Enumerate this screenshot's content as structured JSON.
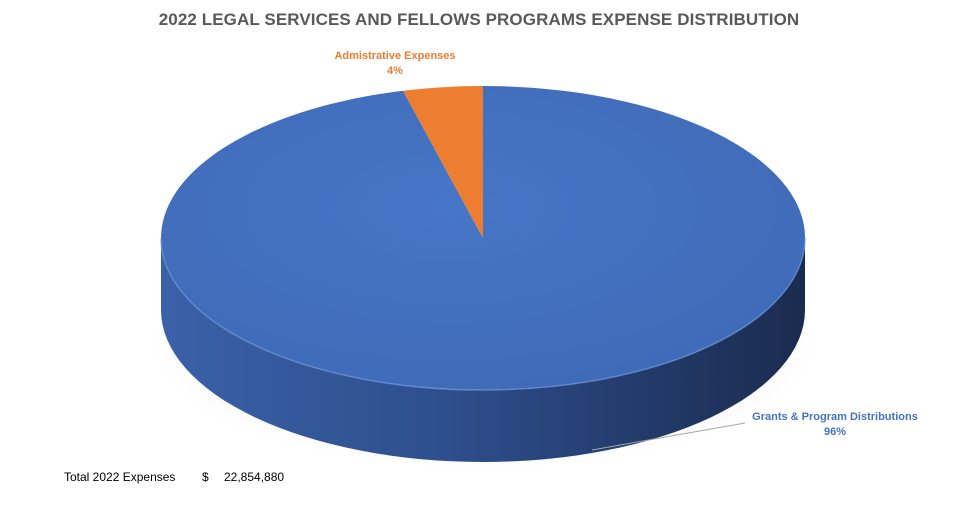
{
  "chart_data": {
    "type": "pie",
    "title": "2022 LEGAL SERVICES AND FELLOWS PROGRAMS EXPENSE DISTRIBUTION",
    "slices": [
      {
        "name": "Grants & Program Distributions",
        "label": "96%",
        "value": 96,
        "color": "#4472C4"
      },
      {
        "name": "Admistrative Expenses",
        "label": "4%",
        "value": 4,
        "color": "#ED7D31"
      }
    ]
  },
  "footer": {
    "total_label": "Total 2022 Expenses",
    "currency": "$",
    "total_value": "22,854,880"
  }
}
